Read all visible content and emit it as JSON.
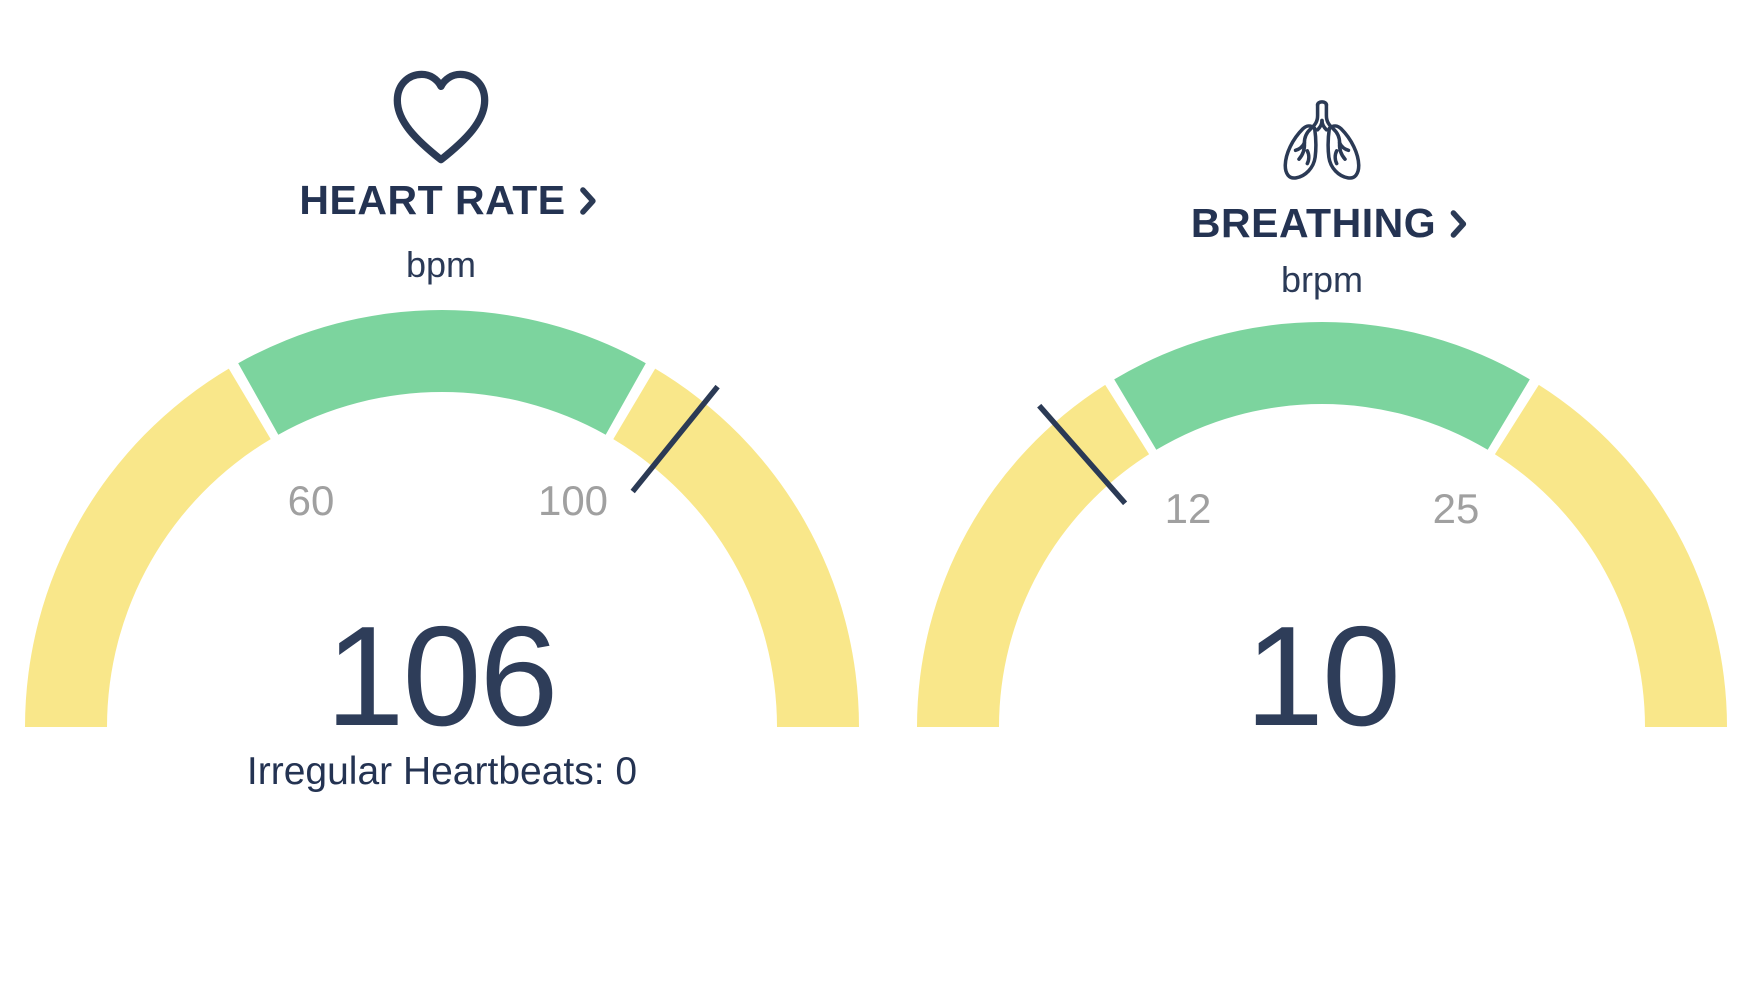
{
  "colors": {
    "yellow": "#F9E78A",
    "green": "#7CD49E",
    "navy": "#2B3A55",
    "title_navy": "#243352",
    "value_navy": "#2E3D59",
    "tick_gray": "#A0A0A0",
    "background": "#FFFFFF"
  },
  "chart_data": [
    {
      "type": "gauge",
      "title": "HEART RATE",
      "icon": "heart-icon",
      "link_chevron": "chevron-right-icon",
      "unit": "bpm",
      "value": 106,
      "range": [
        20,
        140
      ],
      "ticks": [
        {
          "value": 60,
          "label": "60"
        },
        {
          "value": 100,
          "label": "100"
        }
      ],
      "segments": [
        {
          "from": 20,
          "to": 60,
          "color": "yellow",
          "meaning": "below-normal"
        },
        {
          "from": 60,
          "to": 100,
          "color": "green",
          "meaning": "normal"
        },
        {
          "from": 100,
          "to": 140,
          "color": "yellow",
          "meaning": "above-normal"
        }
      ],
      "footnote": "Irregular Heartbeats: 0"
    },
    {
      "type": "gauge",
      "title": "BREATHING",
      "icon": "lungs-icon",
      "link_chevron": "chevron-right-icon",
      "unit": "brpm",
      "value": 10,
      "range": [
        0,
        37
      ],
      "ticks": [
        {
          "value": 12,
          "label": "12"
        },
        {
          "value": 25,
          "label": "25"
        }
      ],
      "segments": [
        {
          "from": 0,
          "to": 12,
          "color": "yellow",
          "meaning": "below-normal"
        },
        {
          "from": 12,
          "to": 25,
          "color": "green",
          "meaning": "normal"
        },
        {
          "from": 25,
          "to": 37,
          "color": "yellow",
          "meaning": "above-normal"
        }
      ]
    }
  ]
}
